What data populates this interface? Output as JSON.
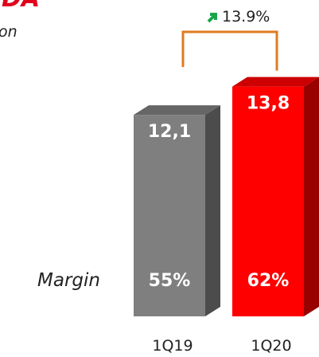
{
  "chart_data": {
    "type": "bar",
    "title": "DA",
    "subtitle": "on",
    "categories": [
      "1Q19",
      "1Q20"
    ],
    "values": [
      12.1,
      13.8
    ],
    "value_labels": [
      "12,1",
      "13,8"
    ],
    "colors": [
      "#7f7f7f",
      "#ff0000"
    ],
    "margin": {
      "label": "Margin",
      "values": [
        55,
        62
      ],
      "value_labels": [
        "55%",
        "62%"
      ]
    },
    "annotation": {
      "value": 13.9,
      "label": "13.9%"
    }
  }
}
